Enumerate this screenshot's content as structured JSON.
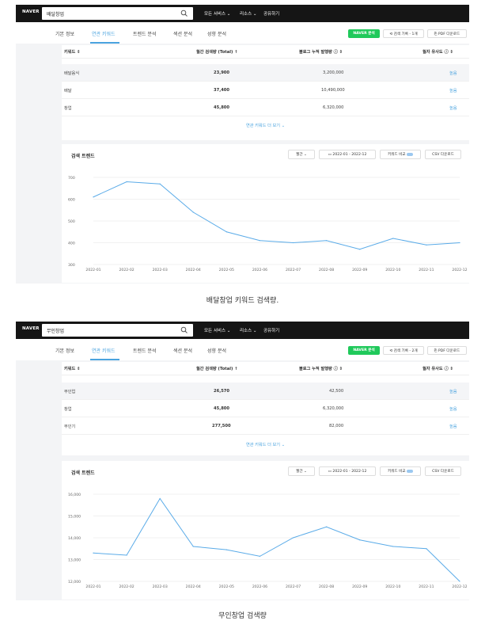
{
  "panels": [
    {
      "naver_dropdown": "NAVER ⌄",
      "search_query": "배달창업",
      "menu": [
        "모든 서비스 ⌄",
        "리소스 ⌄",
        "공유하기"
      ],
      "tabs": [
        "기본 정보",
        "연관 키워드",
        "트렌드 분석",
        "섹션 분석",
        "성향 분석"
      ],
      "active_tab": 1,
      "buttons": {
        "naver": "NAVER 분석",
        "history": "⟲ 검색 기록 - 1개",
        "pdf": "⎘ PDF 다운로드"
      },
      "table": {
        "headers": [
          "키워드 ⇕",
          "월간 검색량 (Total) ↑",
          "블로그 누적 발행량 ⓘ ⇕",
          "월자 유사도 ⓘ ⇕"
        ],
        "rows": [
          {
            "keyword": "배달음식",
            "volume": "23,900",
            "blog": "3,200,000",
            "sim": "높음"
          },
          {
            "keyword": "배달",
            "volume": "37,400",
            "blog": "10,490,000",
            "sim": "높음"
          },
          {
            "keyword": "창업",
            "volume": "45,800",
            "blog": "6,320,000",
            "sim": "높음"
          }
        ],
        "more": "연관 키워드 더 보기 ⌄"
      },
      "trend": {
        "title": "검색 트렌드",
        "period": "월간",
        "range": "2022-01 - 2022-12",
        "compare": "키워드 비교",
        "csv": "CSV 다운로드"
      },
      "caption": "배달창업 키워드 검색량.",
      "chart_data": {
        "type": "line",
        "title": "",
        "xlabel": "",
        "ylabel": "",
        "x": [
          "2022-01",
          "2022-02",
          "2022-03",
          "2022-04",
          "2022-05",
          "2022-06",
          "2022-07",
          "2022-08",
          "2022-09",
          "2022-10",
          "2022-11",
          "2022-12"
        ],
        "series": [
          {
            "values": [
              610,
              680,
              670,
              540,
              450,
              410,
              400,
              410,
              370,
              420,
              390,
              400
            ]
          }
        ],
        "ylim": [
          300,
          700
        ],
        "yticks": [
          "700",
          "600",
          "500",
          "400",
          "300"
        ],
        "ytick_values": [
          700,
          600,
          500,
          400,
          300
        ],
        "grid": true,
        "color": "#5aabe8"
      }
    },
    {
      "naver_dropdown": "NAVER ⌄",
      "search_query": "무인창업",
      "menu": [
        "모든 서비스 ⌄",
        "리소스 ⌄",
        "공유하기"
      ],
      "tabs": [
        "기본 정보",
        "연관 키워드",
        "트렌드 분석",
        "섹션 분석",
        "성향 분석"
      ],
      "active_tab": 1,
      "buttons": {
        "naver": "NAVER 분석",
        "history": "⟲ 검색 기록 - 2개",
        "pdf": "⎘ PDF 다운로드"
      },
      "table": {
        "headers": [
          "키워드 ⇕",
          "월간 검색량 (Total) ↑",
          "블로그 누적 발행량 ⓘ ⇕",
          "월자 유사도 ⓘ ⇕"
        ],
        "rows": [
          {
            "keyword": "무인업",
            "volume": "26,570",
            "blog": "42,500",
            "sim": "높음"
          },
          {
            "keyword": "창업",
            "volume": "45,800",
            "blog": "6,320,000",
            "sim": "높음"
          },
          {
            "keyword": "무인기",
            "volume": "277,500",
            "blog": "82,000",
            "sim": "높음"
          }
        ],
        "more": "연관 키워드 더 보기 ⌄"
      },
      "trend": {
        "title": "검색 트렌드",
        "period": "월간",
        "range": "2022-01 - 2022-12",
        "compare": "키워드 비교",
        "csv": "CSV 다운로드"
      },
      "caption": "무인창업 검색량",
      "chart_data": {
        "type": "line",
        "title": "",
        "xlabel": "",
        "ylabel": "",
        "x": [
          "2022-01",
          "2022-02",
          "2022-03",
          "2022-04",
          "2022-05",
          "2022-06",
          "2022-07",
          "2022-08",
          "2022-09",
          "2022-10",
          "2022-11",
          "2022-12"
        ],
        "series": [
          {
            "values": [
              13300,
              13200,
              15800,
              13600,
              13450,
              13150,
              14000,
              14500,
              13900,
              13600,
              13500,
              12000
            ]
          }
        ],
        "ylim": [
          12000,
          16000
        ],
        "yticks": [
          "16,000",
          "15,000",
          "14,000",
          "13,000",
          "12,000"
        ],
        "ytick_values": [
          16000,
          15000,
          14000,
          13000,
          12000
        ],
        "grid": true,
        "color": "#5aabe8"
      }
    }
  ]
}
